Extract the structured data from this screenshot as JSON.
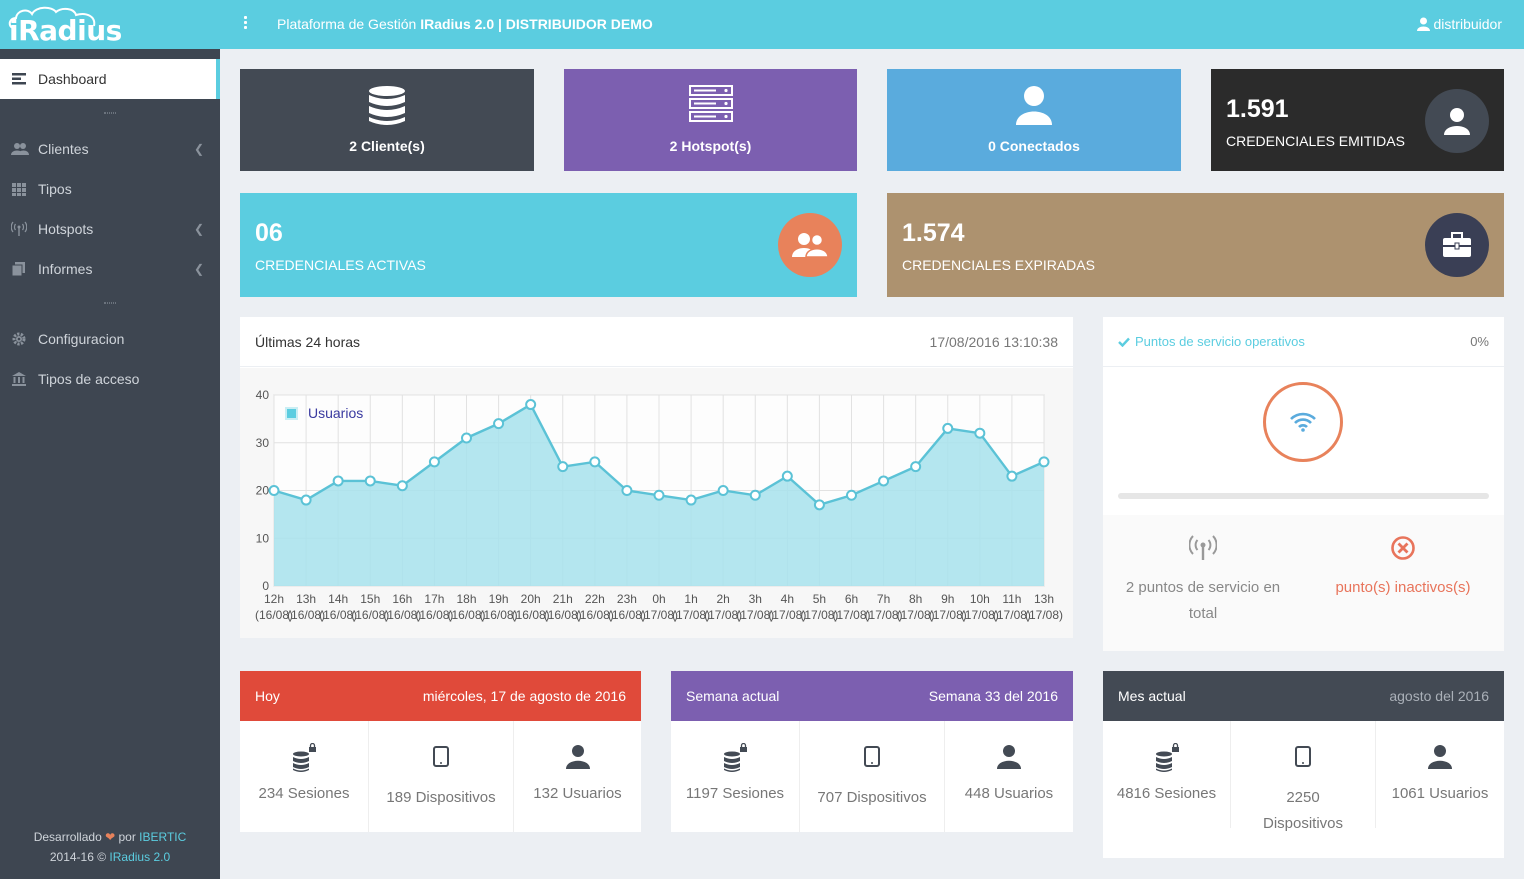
{
  "app": {
    "logo": "iRadius",
    "title_prefix": "Plataforma de Gestión ",
    "title_bold": "IRadius 2.0 | DISTRIBUIDOR DEMO",
    "user": "distribuidor"
  },
  "sidebar": {
    "items": [
      {
        "label": "Dashboard",
        "icon": "dashboard-icon"
      },
      {
        "label": "Clientes",
        "icon": "users-icon"
      },
      {
        "label": "Tipos",
        "icon": "grid-icon"
      },
      {
        "label": "Hotspots",
        "icon": "antenna-icon"
      },
      {
        "label": "Informes",
        "icon": "copy-icon"
      },
      {
        "label": "Configuracion",
        "icon": "gear-icon"
      },
      {
        "label": "Tipos de acceso",
        "icon": "bank-icon"
      }
    ],
    "footer_line1_a": "Desarrollado ",
    "footer_line1_b": " por ",
    "footer_brand": "IBERTIC",
    "footer_line2_a": "2014-16 © ",
    "footer_product": "IRadius 2.0"
  },
  "tiles": {
    "clientes": "2 Cliente(s)",
    "hotspots": "2 Hotspot(s)",
    "conectados": "0 Conectados",
    "emitidas_num": "1.591",
    "emitidas_label": "CREDENCIALES EMITIDAS",
    "activas_num": "06",
    "activas_label": "CREDENCIALES ACTIVAS",
    "expiradas_num": "1.574",
    "expiradas_label": "CREDENCIALES EXPIRADAS"
  },
  "colors": {
    "accent": "#5bcde0",
    "dark_tile": "#3e4651",
    "purple": "#7c5fb0",
    "blue": "#5aabdd",
    "black": "#2b2b2b",
    "cyan": "#5bcde0",
    "brown": "#ad926f",
    "orange": "#e8825b",
    "red": "#e04a3a"
  },
  "chart_panel": {
    "title": "Últimas 24 horas",
    "date": "17/08/2016 13:10:38"
  },
  "chart_data": {
    "type": "area",
    "categories": [
      "12h",
      "13h",
      "14h",
      "15h",
      "16h",
      "17h",
      "18h",
      "19h",
      "20h",
      "21h",
      "22h",
      "23h",
      "0h",
      "1h",
      "2h",
      "3h",
      "4h",
      "5h",
      "6h",
      "7h",
      "8h",
      "9h",
      "10h",
      "11h",
      "13h"
    ],
    "dates": [
      "(16/08)",
      "(16/08)",
      "(16/08)",
      "(16/08)",
      "(16/08)",
      "(16/08)",
      "(16/08)",
      "(16/08)",
      "(16/08)",
      "(16/08)",
      "(16/08)",
      "(16/08)",
      "(17/08)",
      "(17/08)",
      "(17/08)",
      "(17/08)",
      "(17/08)",
      "(17/08)",
      "(17/08)",
      "(17/08)",
      "(17/08)",
      "(17/08)",
      "(17/08)",
      "(17/08)",
      "(17/08)"
    ],
    "series": [
      {
        "name": "Usuarios",
        "values": [
          20,
          18,
          22,
          22,
          21,
          26,
          31,
          34,
          38,
          25,
          26,
          20,
          19,
          18,
          20,
          19,
          23,
          17,
          19,
          22,
          25,
          33,
          32,
          23,
          26
        ]
      }
    ],
    "ylim": [
      0,
      40
    ],
    "yticks": [
      "0",
      "10",
      "20",
      "30",
      "40"
    ],
    "grid": true,
    "legend": "top-left"
  },
  "service": {
    "label": "Puntos de servicio operativos",
    "pct": "0%",
    "total": "2 puntos de servicio en total",
    "inactive": "punto(s) inactivos(s)"
  },
  "summary": {
    "today": {
      "label": "Hoy",
      "date": "miércoles, 17 de agosto de 2016",
      "sesiones": "234 Sesiones",
      "dispositivos": "189 Dispositivos",
      "usuarios": "132 Usuarios"
    },
    "week": {
      "label": "Semana actual",
      "date": "Semana 33 del 2016",
      "sesiones": "1197 Sesiones",
      "dispositivos": "707 Dispositivos",
      "usuarios": "448 Usuarios"
    },
    "month": {
      "label": "Mes actual",
      "date": "agosto del 2016",
      "sesiones": "4816 Sesiones",
      "dispositivos": "2250 Dispositivos",
      "usuarios": "1061 Usuarios"
    }
  }
}
